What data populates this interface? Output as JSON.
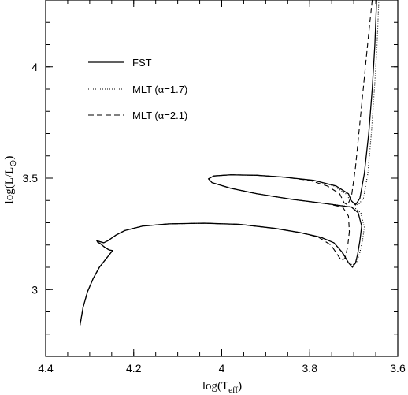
{
  "chart_data": {
    "type": "line",
    "title": "",
    "xlabel": {
      "main": "log(T",
      "sub": "eff",
      "tail": ")"
    },
    "ylabel": {
      "main": "log(L/L",
      "sub": "⊙",
      "tail": ")"
    },
    "xlim": [
      4.4,
      3.6
    ],
    "ylim": [
      2.7,
      4.3
    ],
    "x_reversed": true,
    "x_ticks": [
      {
        "value": 4.4,
        "label": "4.4"
      },
      {
        "value": 4.2,
        "label": "4.2"
      },
      {
        "value": 4.0,
        "label": "4"
      },
      {
        "value": 3.8,
        "label": "3.8"
      },
      {
        "value": 3.6,
        "label": "3.6"
      }
    ],
    "y_ticks": [
      {
        "value": 3.0,
        "label": "3"
      },
      {
        "value": 3.5,
        "label": "3.5"
      },
      {
        "value": 4.0,
        "label": "4"
      }
    ],
    "x_minor_step": 0.05,
    "y_minor_step": 0.1,
    "grid": false,
    "legend_position": "top-left",
    "series": [
      {
        "name": "FST",
        "style": "solid",
        "points": [
          [
            4.322,
            2.84
          ],
          [
            4.315,
            2.92
          ],
          [
            4.305,
            2.99
          ],
          [
            4.292,
            3.05
          ],
          [
            4.278,
            3.1
          ],
          [
            4.262,
            3.14
          ],
          [
            4.252,
            3.165
          ],
          [
            4.248,
            3.175
          ],
          [
            4.256,
            3.178
          ],
          [
            4.266,
            3.19
          ],
          [
            4.275,
            3.205
          ],
          [
            4.282,
            3.213
          ],
          [
            4.284,
            3.22
          ],
          [
            4.277,
            3.215
          ],
          [
            4.268,
            3.21
          ],
          [
            4.258,
            3.22
          ],
          [
            4.24,
            3.245
          ],
          [
            4.22,
            3.265
          ],
          [
            4.18,
            3.285
          ],
          [
            4.12,
            3.295
          ],
          [
            4.04,
            3.298
          ],
          [
            3.96,
            3.293
          ],
          [
            3.88,
            3.275
          ],
          [
            3.82,
            3.255
          ],
          [
            3.775,
            3.235
          ],
          [
            3.745,
            3.21
          ],
          [
            3.725,
            3.165
          ],
          [
            3.712,
            3.12
          ],
          [
            3.703,
            3.1
          ],
          [
            3.696,
            3.12
          ],
          [
            3.691,
            3.16
          ],
          [
            3.686,
            3.22
          ],
          [
            3.682,
            3.285
          ],
          [
            3.69,
            3.345
          ],
          [
            3.705,
            3.37
          ],
          [
            3.76,
            3.385
          ],
          [
            3.84,
            3.405
          ],
          [
            3.92,
            3.43
          ],
          [
            3.98,
            3.455
          ],
          [
            4.022,
            3.48
          ],
          [
            4.03,
            3.497
          ],
          [
            4.018,
            3.51
          ],
          [
            3.98,
            3.515
          ],
          [
            3.92,
            3.513
          ],
          [
            3.86,
            3.505
          ],
          [
            3.79,
            3.49
          ],
          [
            3.74,
            3.465
          ],
          [
            3.712,
            3.43
          ],
          [
            3.706,
            3.4
          ],
          [
            3.696,
            3.38
          ],
          [
            3.686,
            3.41
          ],
          [
            3.676,
            3.52
          ],
          [
            3.666,
            3.7
          ],
          [
            3.658,
            3.9
          ],
          [
            3.652,
            4.1
          ],
          [
            3.648,
            4.3
          ]
        ]
      },
      {
        "name": "MLT (α=1.7)",
        "style": "dotted",
        "points": [
          [
            4.322,
            2.84
          ],
          [
            4.315,
            2.92
          ],
          [
            4.305,
            2.99
          ],
          [
            4.292,
            3.05
          ],
          [
            4.278,
            3.1
          ],
          [
            4.262,
            3.14
          ],
          [
            4.252,
            3.165
          ],
          [
            4.248,
            3.175
          ],
          [
            4.256,
            3.178
          ],
          [
            4.266,
            3.19
          ],
          [
            4.275,
            3.205
          ],
          [
            4.282,
            3.213
          ],
          [
            4.284,
            3.22
          ],
          [
            4.277,
            3.215
          ],
          [
            4.268,
            3.21
          ],
          [
            4.258,
            3.22
          ],
          [
            4.24,
            3.245
          ],
          [
            4.22,
            3.265
          ],
          [
            4.18,
            3.285
          ],
          [
            4.12,
            3.295
          ],
          [
            4.04,
            3.298
          ],
          [
            3.96,
            3.293
          ],
          [
            3.88,
            3.275
          ],
          [
            3.82,
            3.255
          ],
          [
            3.775,
            3.235
          ],
          [
            3.745,
            3.21
          ],
          [
            3.728,
            3.17
          ],
          [
            3.715,
            3.13
          ],
          [
            3.704,
            3.11
          ],
          [
            3.694,
            3.12
          ],
          [
            3.687,
            3.16
          ],
          [
            3.68,
            3.22
          ],
          [
            3.676,
            3.28
          ],
          [
            3.684,
            3.345
          ],
          [
            3.7,
            3.37
          ],
          [
            3.76,
            3.385
          ],
          [
            3.84,
            3.405
          ],
          [
            3.92,
            3.43
          ],
          [
            3.98,
            3.455
          ],
          [
            4.022,
            3.48
          ],
          [
            4.03,
            3.497
          ],
          [
            4.018,
            3.51
          ],
          [
            3.98,
            3.515
          ],
          [
            3.92,
            3.513
          ],
          [
            3.86,
            3.505
          ],
          [
            3.79,
            3.49
          ],
          [
            3.745,
            3.465
          ],
          [
            3.718,
            3.43
          ],
          [
            3.706,
            3.395
          ],
          [
            3.69,
            3.38
          ],
          [
            3.678,
            3.41
          ],
          [
            3.668,
            3.52
          ],
          [
            3.66,
            3.7
          ],
          [
            3.653,
            3.9
          ],
          [
            3.647,
            4.1
          ],
          [
            3.643,
            4.3
          ]
        ]
      },
      {
        "name": "MLT (α=2.1)",
        "style": "dashed",
        "points": [
          [
            4.322,
            2.84
          ],
          [
            4.315,
            2.92
          ],
          [
            4.305,
            2.99
          ],
          [
            4.292,
            3.05
          ],
          [
            4.278,
            3.1
          ],
          [
            4.262,
            3.14
          ],
          [
            4.252,
            3.165
          ],
          [
            4.248,
            3.175
          ],
          [
            4.256,
            3.178
          ],
          [
            4.266,
            3.19
          ],
          [
            4.275,
            3.205
          ],
          [
            4.282,
            3.213
          ],
          [
            4.284,
            3.22
          ],
          [
            4.277,
            3.215
          ],
          [
            4.268,
            3.21
          ],
          [
            4.258,
            3.22
          ],
          [
            4.24,
            3.245
          ],
          [
            4.22,
            3.265
          ],
          [
            4.18,
            3.285
          ],
          [
            4.12,
            3.295
          ],
          [
            4.04,
            3.298
          ],
          [
            3.96,
            3.293
          ],
          [
            3.88,
            3.275
          ],
          [
            3.82,
            3.255
          ],
          [
            3.78,
            3.235
          ],
          [
            3.752,
            3.2
          ],
          [
            3.738,
            3.16
          ],
          [
            3.728,
            3.13
          ],
          [
            3.72,
            3.14
          ],
          [
            3.714,
            3.19
          ],
          [
            3.71,
            3.26
          ],
          [
            3.712,
            3.33
          ],
          [
            3.725,
            3.37
          ],
          [
            3.76,
            3.385
          ],
          [
            3.84,
            3.405
          ],
          [
            3.92,
            3.43
          ],
          [
            3.98,
            3.455
          ],
          [
            4.022,
            3.48
          ],
          [
            4.03,
            3.497
          ],
          [
            4.018,
            3.51
          ],
          [
            3.98,
            3.515
          ],
          [
            3.92,
            3.513
          ],
          [
            3.86,
            3.505
          ],
          [
            3.8,
            3.49
          ],
          [
            3.76,
            3.465
          ],
          [
            3.732,
            3.43
          ],
          [
            3.722,
            3.39
          ],
          [
            3.714,
            3.38
          ],
          [
            3.705,
            3.42
          ],
          [
            3.696,
            3.55
          ],
          [
            3.686,
            3.75
          ],
          [
            3.676,
            3.95
          ],
          [
            3.666,
            4.15
          ],
          [
            3.658,
            4.3
          ]
        ]
      }
    ]
  }
}
